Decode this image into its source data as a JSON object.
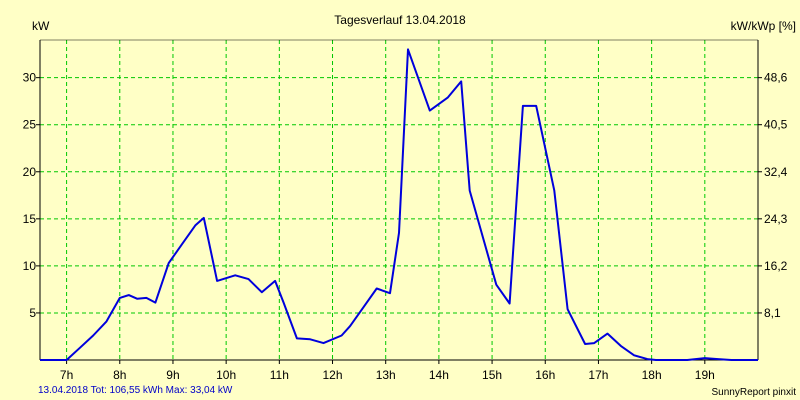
{
  "chart_data": {
    "type": "line",
    "title": "Tagesverlauf 13.04.2018",
    "ylabel_left": "kW",
    "ylabel_right": "kW/kWp [%]",
    "footer_left": "13.04.2018 Tot: 106,55 kWh Max: 33,04 kW",
    "footer_right": "SunnyReport pinxit",
    "x_range": [
      6.5,
      20.0
    ],
    "ylim": [
      0,
      34
    ],
    "x_ticks": [
      {
        "value": 7,
        "label": "7h"
      },
      {
        "value": 8,
        "label": "8h"
      },
      {
        "value": 9,
        "label": "9h"
      },
      {
        "value": 10,
        "label": "10h"
      },
      {
        "value": 11,
        "label": "11h"
      },
      {
        "value": 12,
        "label": "12h"
      },
      {
        "value": 13,
        "label": "13h"
      },
      {
        "value": 14,
        "label": "14h"
      },
      {
        "value": 15,
        "label": "15h"
      },
      {
        "value": 16,
        "label": "16h"
      },
      {
        "value": 17,
        "label": "17h"
      },
      {
        "value": 18,
        "label": "18h"
      },
      {
        "value": 19,
        "label": "19h"
      }
    ],
    "y_ticks_left": [
      {
        "value": 5,
        "label": "5"
      },
      {
        "value": 10,
        "label": "10"
      },
      {
        "value": 15,
        "label": "15"
      },
      {
        "value": 20,
        "label": "20"
      },
      {
        "value": 25,
        "label": "25"
      },
      {
        "value": 30,
        "label": "30"
      }
    ],
    "y_ticks_right": [
      {
        "value": 5,
        "label": "8,1"
      },
      {
        "value": 10,
        "label": "16,2"
      },
      {
        "value": 15,
        "label": "24,3"
      },
      {
        "value": 20,
        "label": "32,4"
      },
      {
        "value": 25,
        "label": "40,5"
      },
      {
        "value": 30,
        "label": "48,6"
      }
    ],
    "grid": true,
    "colors": {
      "background": "#FFFFC6",
      "grid": "#00C800",
      "line": "#0000DC",
      "axis": "#000000"
    },
    "series": [
      {
        "x": [
          6.5,
          7.0,
          7.25,
          7.5,
          7.75,
          8.0,
          8.17,
          8.33,
          8.5,
          8.67,
          8.92,
          9.17,
          9.42,
          9.58,
          9.83,
          10.17,
          10.42,
          10.67,
          10.92,
          11.08,
          11.33,
          11.58,
          11.83,
          12.17,
          12.33,
          12.58,
          12.83,
          13.08,
          13.25,
          13.42,
          13.83,
          14.17,
          14.42,
          14.58,
          15.08,
          15.33,
          15.58,
          15.83,
          16.17,
          16.42,
          16.75,
          16.92,
          17.17,
          17.42,
          17.67,
          17.92,
          18.08,
          18.42,
          18.67,
          19.0,
          19.25,
          19.5,
          20.0
        ],
        "y": [
          0.0,
          0.0,
          1.3,
          2.6,
          4.1,
          6.6,
          6.9,
          6.5,
          6.6,
          6.1,
          10.3,
          12.3,
          14.3,
          15.1,
          8.4,
          9.0,
          8.6,
          7.2,
          8.4,
          6.1,
          2.3,
          2.2,
          1.8,
          2.6,
          3.6,
          5.6,
          7.6,
          7.1,
          13.5,
          33.0,
          26.5,
          27.9,
          29.6,
          18.0,
          8.0,
          6.0,
          27.0,
          27.0,
          18.0,
          5.4,
          1.7,
          1.8,
          2.8,
          1.5,
          0.5,
          0.1,
          0.0,
          0.0,
          0.0,
          0.2,
          0.1,
          0.0,
          0.0
        ]
      }
    ]
  }
}
